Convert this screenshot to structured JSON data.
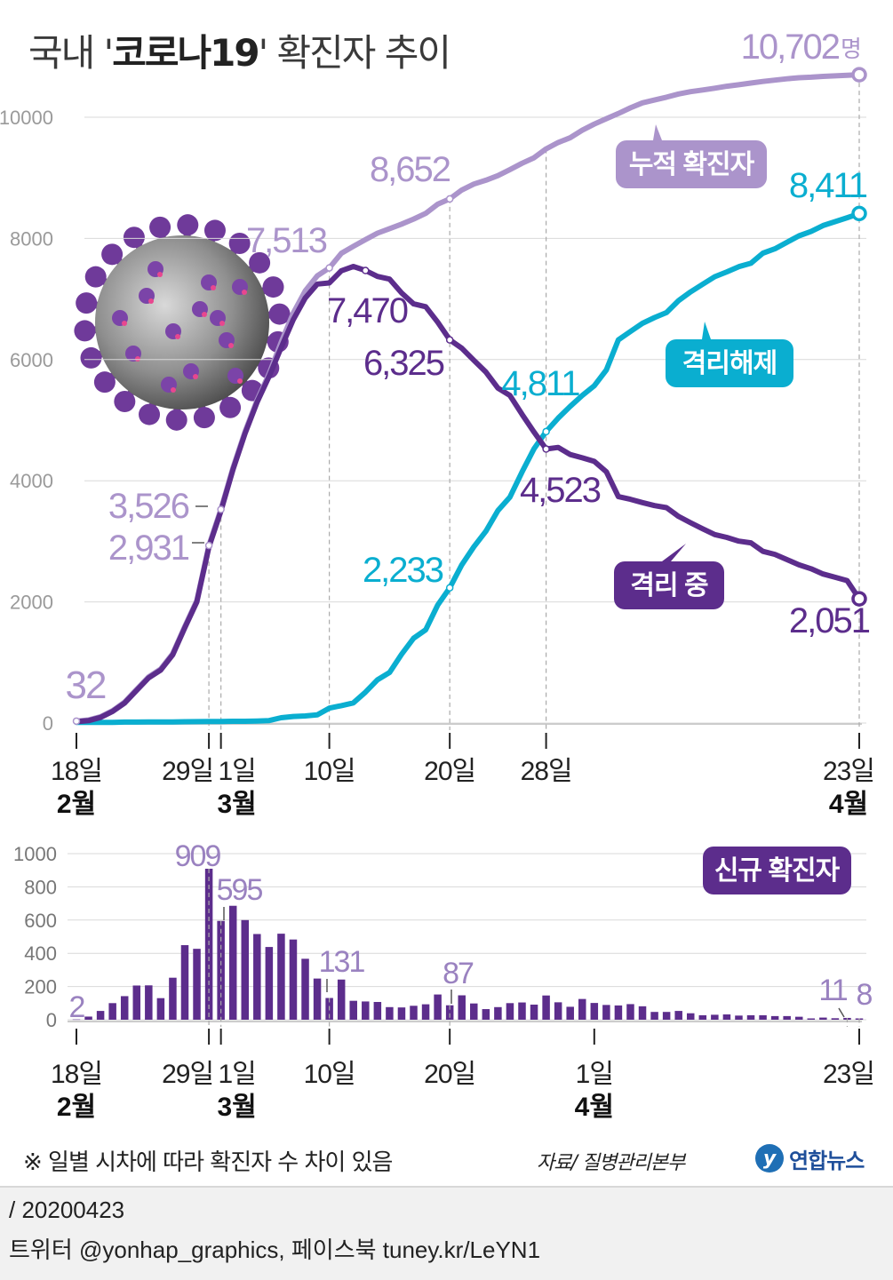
{
  "title": {
    "prefix": "국내 '",
    "bold": "코로나19",
    "suffix": "' 확진자 추이"
  },
  "note": "※ 일별 시차에 따라 확진자 수 차이 있음",
  "source": "자료/ 질병관리본부",
  "brand": {
    "icon": "y",
    "name": "연합뉴스"
  },
  "footer": {
    "date": "/ 20200423",
    "social": "트위터 @yonhap_graphics, 페이스북 tuney.kr/LeYN1"
  },
  "colors": {
    "cumulative": "#ab94cb",
    "isolated": "#5c2d8c",
    "released": "#0aaed0",
    "new": "#5c2d8c",
    "axis": "#aaaaaa"
  },
  "virus_image": "coronavirus-illustration",
  "chart_data": [
    {
      "type": "line",
      "x_unit": "day index from 2020-02-18",
      "x_range": [
        0,
        65
      ],
      "ylim": [
        0,
        10000
      ],
      "yticks": [
        0,
        2000,
        4000,
        6000,
        8000,
        10000
      ],
      "xticks": [
        {
          "x": 0,
          "day": "18일",
          "month": "2월"
        },
        {
          "x": 11,
          "day": "29일",
          "month": ""
        },
        {
          "x": 12,
          "day": "1일",
          "month": "3월"
        },
        {
          "x": 21,
          "day": "10일",
          "month": ""
        },
        {
          "x": 31,
          "day": "20일",
          "month": ""
        },
        {
          "x": 39,
          "day": "28일",
          "month": ""
        },
        {
          "x": 65,
          "day": "23일",
          "month": "4월"
        }
      ],
      "series": [
        {
          "key": "cumulative",
          "name": "누적 확진자",
          "x": [
            0,
            1,
            2,
            3,
            4,
            5,
            6,
            7,
            8,
            9,
            10,
            11,
            12,
            13,
            14,
            15,
            16,
            17,
            18,
            19,
            20,
            21,
            22,
            23,
            24,
            25,
            26,
            27,
            28,
            29,
            30,
            31,
            32,
            33,
            34,
            35,
            36,
            37,
            38,
            39,
            40,
            41,
            42,
            43,
            44,
            45,
            46,
            47,
            48,
            49,
            50,
            51,
            52,
            53,
            54,
            55,
            56,
            57,
            58,
            59,
            60,
            61,
            62,
            63,
            64,
            65
          ],
          "values": [
            32,
            51,
            104,
            204,
            346,
            556,
            763,
            893,
            1146,
            1595,
            2022,
            2931,
            3526,
            4212,
            4812,
            5328,
            5766,
            6284,
            6767,
            7134,
            7382,
            7513,
            7755,
            7869,
            7979,
            8086,
            8162,
            8236,
            8320,
            8413,
            8565,
            8652,
            8799,
            8897,
            8961,
            9037,
            9137,
            9241,
            9332,
            9478,
            9583,
            9661,
            9786,
            9887,
            9976,
            10062,
            10156,
            10237,
            10284,
            10331,
            10384,
            10423,
            10450,
            10480,
            10512,
            10537,
            10564,
            10591,
            10613,
            10635,
            10653,
            10661,
            10674,
            10683,
            10694,
            10702
          ],
          "annotations": [
            {
              "x": 0,
              "value": 32,
              "label": "32"
            },
            {
              "x": 11,
              "value": 2931,
              "label": "2,931"
            },
            {
              "x": 12,
              "value": 3526,
              "label": "3,526"
            },
            {
              "x": 21,
              "value": 7513,
              "label": "7,513"
            },
            {
              "x": 31,
              "value": 8652,
              "label": "8,652"
            },
            {
              "x": 65,
              "value": 10702,
              "label": "10,702",
              "unit": "명"
            }
          ]
        },
        {
          "key": "released",
          "name": "격리해제",
          "x": [
            0,
            1,
            2,
            3,
            4,
            5,
            6,
            7,
            8,
            9,
            10,
            11,
            12,
            13,
            14,
            15,
            16,
            17,
            18,
            19,
            20,
            21,
            22,
            23,
            24,
            25,
            26,
            27,
            28,
            29,
            30,
            31,
            32,
            33,
            34,
            35,
            36,
            37,
            38,
            39,
            40,
            41,
            42,
            43,
            44,
            45,
            46,
            47,
            48,
            49,
            50,
            51,
            52,
            53,
            54,
            55,
            56,
            57,
            58,
            59,
            60,
            61,
            62,
            63,
            64,
            65
          ],
          "values": [
            10,
            12,
            12,
            12,
            16,
            16,
            17,
            17,
            18,
            22,
            24,
            26,
            27,
            29,
            30,
            34,
            41,
            88,
            108,
            118,
            135,
            247,
            288,
            333,
            510,
            714,
            834,
            1137,
            1401,
            1540,
            1947,
            2233,
            2612,
            2909,
            3166,
            3507,
            3730,
            4144,
            4528,
            4811,
            5033,
            5228,
            5408,
            5567,
            5828,
            6325,
            6463,
            6598,
            6694,
            6776,
            6973,
            7117,
            7243,
            7368,
            7447,
            7534,
            7589,
            7757,
            7829,
            7937,
            8042,
            8114,
            8213,
            8277,
            8342,
            8411
          ],
          "annotations": [
            {
              "x": 31,
              "value": 2233,
              "label": "2,233"
            },
            {
              "x": 39,
              "value": 4811,
              "label": "4,811"
            },
            {
              "x": 65,
              "value": 8411,
              "label": "8,411"
            }
          ]
        },
        {
          "key": "isolated",
          "name": "격리 중",
          "x": [
            0,
            1,
            2,
            3,
            4,
            5,
            6,
            7,
            8,
            9,
            10,
            11,
            12,
            13,
            14,
            15,
            16,
            17,
            18,
            19,
            20,
            21,
            22,
            23,
            24,
            25,
            26,
            27,
            28,
            29,
            30,
            31,
            32,
            33,
            34,
            35,
            36,
            37,
            38,
            39,
            40,
            41,
            42,
            43,
            44,
            45,
            46,
            47,
            48,
            49,
            50,
            51,
            52,
            53,
            54,
            55,
            56,
            57,
            58,
            59,
            60,
            61,
            62,
            63,
            64,
            65
          ],
          "values": [
            22,
            39,
            92,
            192,
            330,
            540,
            746,
            876,
            1128,
            1573,
            1998,
            2905,
            3499,
            4183,
            4782,
            5294,
            5725,
            6196,
            6659,
            7016,
            7247,
            7266,
            7467,
            7536,
            7470,
            7372,
            7328,
            7099,
            6919,
            6873,
            6618,
            6325,
            6187,
            5988,
            5795,
            5530,
            5407,
            5097,
            4804,
            4523,
            4550,
            4433,
            4378,
            4320,
            4148,
            3737,
            3693,
            3639,
            3590,
            3555,
            3411,
            3306,
            3207,
            3112,
            3065,
            3003,
            2975,
            2834,
            2784,
            2698,
            2611,
            2547,
            2461,
            2406,
            2352,
            2051
          ],
          "annotations": [
            {
              "x": 24,
              "value": 7470,
              "label": "7,470"
            },
            {
              "x": 31,
              "value": 6325,
              "label": "6,325"
            },
            {
              "x": 39,
              "value": 4523,
              "label": "4,523"
            },
            {
              "x": 65,
              "value": 2051,
              "label": "2,051"
            }
          ]
        }
      ]
    },
    {
      "type": "bar",
      "x_range": [
        0,
        65
      ],
      "ylim": [
        0,
        1000
      ],
      "yticks": [
        0,
        200,
        400,
        600,
        800,
        1000
      ],
      "xticks": [
        {
          "x": 0,
          "day": "18일",
          "month": "2월"
        },
        {
          "x": 11,
          "day": "29일",
          "month": ""
        },
        {
          "x": 12,
          "day": "1일",
          "month": "3월"
        },
        {
          "x": 21,
          "day": "10일",
          "month": ""
        },
        {
          "x": 31,
          "day": "20일",
          "month": ""
        },
        {
          "x": 43,
          "day": "1일",
          "month": "4월"
        },
        {
          "x": 65,
          "day": "23일",
          "month": ""
        }
      ],
      "series": [
        {
          "key": "new",
          "name": "신규 확진자",
          "x": [
            0,
            1,
            2,
            3,
            4,
            5,
            6,
            7,
            8,
            9,
            10,
            11,
            12,
            13,
            14,
            15,
            16,
            17,
            18,
            19,
            20,
            21,
            22,
            23,
            24,
            25,
            26,
            27,
            28,
            29,
            30,
            31,
            32,
            33,
            34,
            35,
            36,
            37,
            38,
            39,
            40,
            41,
            42,
            43,
            44,
            45,
            46,
            47,
            48,
            49,
            50,
            51,
            52,
            53,
            54,
            55,
            56,
            57,
            58,
            59,
            60,
            61,
            62,
            63,
            64,
            65
          ],
          "values": [
            2,
            19,
            53,
            100,
            142,
            206,
            207,
            130,
            253,
            449,
            427,
            909,
            595,
            686,
            600,
            516,
            438,
            518,
            483,
            367,
            248,
            131,
            242,
            114,
            110,
            107,
            76,
            74,
            84,
            93,
            152,
            87,
            147,
            98,
            64,
            76,
            100,
            104,
            91,
            146,
            105,
            78,
            125,
            101,
            89,
            86,
            94,
            81,
            47,
            47,
            53,
            39,
            27,
            30,
            32,
            25,
            27,
            27,
            22,
            22,
            18,
            8,
            13,
            9,
            11,
            8
          ],
          "annotations": [
            {
              "x": 0,
              "value": 2,
              "label": "2"
            },
            {
              "x": 11,
              "value": 909,
              "label": "909"
            },
            {
              "x": 12,
              "value": 595,
              "label": "595"
            },
            {
              "x": 21,
              "value": 131,
              "label": "131"
            },
            {
              "x": 31,
              "value": 87,
              "label": "87"
            },
            {
              "x": 64,
              "value": 11,
              "label": "11"
            },
            {
              "x": 65,
              "value": 8,
              "label": "8"
            }
          ]
        }
      ]
    }
  ]
}
